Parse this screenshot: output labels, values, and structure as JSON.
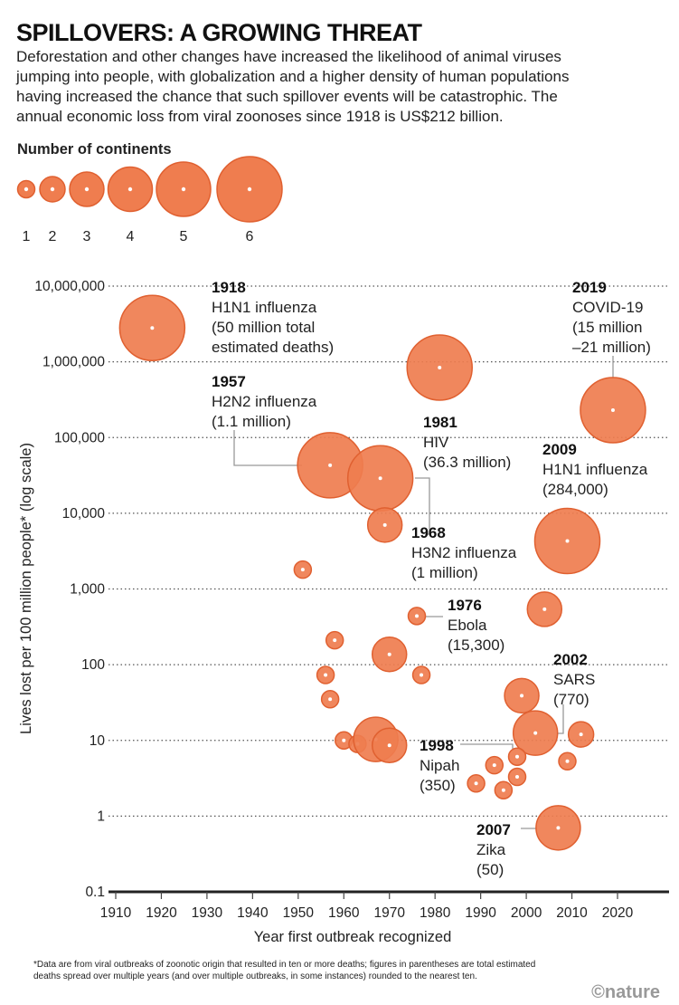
{
  "title": "SPILLOVERS: A GROWING THREAT",
  "subtitle_lines": [
    "Deforestation and other changes have increased the likelihood of animal viruses",
    "jumping into people, with globalization and a higher density of human populations",
    "having increased the chance that such spillover events will be catastrophic. The",
    "annual economic loss from viral zoonoses since 1918 is US$212 billion."
  ],
  "legend": {
    "title": "Number of continents",
    "sizes": [
      "1",
      "2",
      "3",
      "4",
      "5",
      "6"
    ]
  },
  "colors": {
    "bubble_fill": "#ef7d4f",
    "bubble_stroke": "#e06030",
    "center_dot": "#ffffff"
  },
  "chart_data": {
    "type": "scatter",
    "xlabel": "Year first outbreak recognized",
    "ylabel": "Lives lost per 100 million people* (log scale)",
    "xlim": [
      1910,
      2020
    ],
    "ylim": [
      0.1,
      10000000
    ],
    "y_scale": "log",
    "grid": "horizontal dotted",
    "x_ticks": [
      "1910",
      "1920",
      "1930",
      "1940",
      "1950",
      "1960",
      "1970",
      "1980",
      "1990",
      "2000",
      "2010",
      "2020"
    ],
    "y_ticks": [
      "10,000,000",
      "1,000,000",
      "100,000",
      "10,000",
      "1,000",
      "100",
      "10",
      "1",
      "0.1"
    ],
    "size_encoding": "Number of continents",
    "points": [
      {
        "year": 1918,
        "value": 2800000,
        "continents": 6
      },
      {
        "year": 1981,
        "value": 840000,
        "continents": 6
      },
      {
        "year": 2019,
        "value": 230000,
        "continents": 6
      },
      {
        "year": 1957,
        "value": 43000,
        "continents": 6
      },
      {
        "year": 1968,
        "value": 29000,
        "continents": 6
      },
      {
        "year": 1969,
        "value": 7000,
        "continents": 3
      },
      {
        "year": 2009,
        "value": 4300,
        "continents": 6
      },
      {
        "year": 1951,
        "value": 1800,
        "continents": 1
      },
      {
        "year": 1976,
        "value": 440,
        "continents": 1
      },
      {
        "year": 2004,
        "value": 540,
        "continents": 3
      },
      {
        "year": 1958,
        "value": 210,
        "continents": 1
      },
      {
        "year": 1970,
        "value": 137,
        "continents": 3
      },
      {
        "year": 1956,
        "value": 73,
        "continents": 1
      },
      {
        "year": 1977,
        "value": 73,
        "continents": 1
      },
      {
        "year": 1957,
        "value": 35,
        "continents": 1
      },
      {
        "year": 1999,
        "value": 39,
        "continents": 3
      },
      {
        "year": 2002,
        "value": 12.5,
        "continents": 4
      },
      {
        "year": 2012,
        "value": 12,
        "continents": 2
      },
      {
        "year": 1960,
        "value": 10,
        "continents": 1
      },
      {
        "year": 1963,
        "value": 9,
        "continents": 1
      },
      {
        "year": 1967,
        "value": 10.3,
        "continents": 4
      },
      {
        "year": 1970,
        "value": 8.6,
        "continents": 3
      },
      {
        "year": 1998,
        "value": 6.1,
        "continents": 1
      },
      {
        "year": 1993,
        "value": 4.7,
        "continents": 1
      },
      {
        "year": 2009,
        "value": 5.3,
        "continents": 1
      },
      {
        "year": 1989,
        "value": 2.7,
        "continents": 1
      },
      {
        "year": 1998,
        "value": 3.3,
        "continents": 1
      },
      {
        "year": 1995,
        "value": 2.2,
        "continents": 1
      },
      {
        "year": 2007,
        "value": 0.7,
        "continents": 4
      }
    ],
    "annotations": [
      {
        "year": "1918",
        "lines": [
          "H1N1 influenza",
          "(50 million total",
          "estimated deaths)"
        ]
      },
      {
        "year": "2019",
        "lines": [
          "COVID-19",
          "(15 million",
          "–21 million)"
        ]
      },
      {
        "year": "1957",
        "lines": [
          "H2N2 influenza",
          "(1.1 million)"
        ]
      },
      {
        "year": "1981",
        "lines": [
          "HIV",
          "(36.3 million)"
        ]
      },
      {
        "year": "2009",
        "lines": [
          "H1N1 influenza",
          "(284,000)"
        ]
      },
      {
        "year": "1968",
        "lines": [
          "H3N2 influenza",
          "(1 million)"
        ]
      },
      {
        "year": "1976",
        "lines": [
          "Ebola",
          "(15,300)"
        ]
      },
      {
        "year": "2002",
        "lines": [
          "SARS",
          "(770)"
        ]
      },
      {
        "year": "1998",
        "lines": [
          "Nipah",
          "(350)"
        ]
      },
      {
        "year": "2007",
        "lines": [
          "Zika",
          "(50)"
        ]
      }
    ]
  },
  "footnote_lines": [
    "*Data are from viral outbreaks of zoonotic origin that resulted in ten or more deaths; figures in parentheses are total estimated",
    "deaths spread over multiple years (and over multiple outbreaks, in some instances) rounded to the nearest ten."
  ],
  "logo": "©nature"
}
